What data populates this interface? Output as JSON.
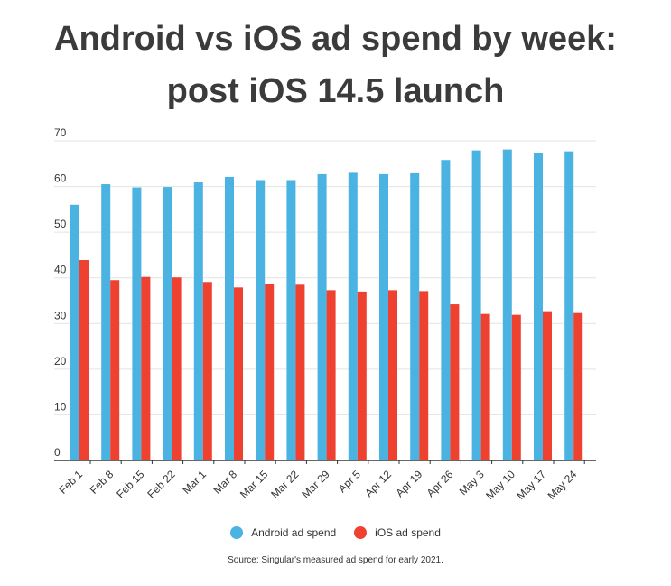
{
  "title_lines": [
    "Android vs iOS ad spend by week:",
    "post iOS 14.5 launch"
  ],
  "source": "Source: Singular's measured ad spend for early 2021.",
  "colors": {
    "android": "#4ab3e2",
    "ios": "#ef4130",
    "grid": "#e3e3e3",
    "axis": "#333333"
  },
  "chart_data": {
    "type": "bar",
    "title": "Android vs iOS ad spend by week: post iOS 14.5 launch",
    "categories": [
      "Feb 1",
      "Feb 8",
      "Feb 15",
      "Feb 22",
      "Mar 1",
      "Mar 8",
      "Mar 15",
      "Mar 22",
      "Mar 29",
      "Apr 5",
      "Apr 12",
      "Apr 19",
      "Apr 26",
      "May 3",
      "May 10",
      "May 17",
      "May 24"
    ],
    "series": [
      {
        "name": "Android ad spend",
        "values": [
          56,
          60.5,
          59.8,
          59.9,
          60.9,
          62.1,
          61.4,
          61.4,
          62.7,
          63.0,
          62.7,
          62.9,
          65.8,
          67.9,
          68.1,
          67.4,
          67.7
        ]
      },
      {
        "name": "iOS ad spend",
        "values": [
          43.9,
          39.5,
          40.2,
          40.1,
          39.1,
          37.9,
          38.6,
          38.5,
          37.3,
          37.0,
          37.3,
          37.1,
          34.2,
          32.1,
          31.9,
          32.7,
          32.3
        ]
      }
    ],
    "ylim": [
      0,
      70
    ],
    "yticks": [
      0,
      10,
      20,
      30,
      40,
      50,
      60,
      70
    ],
    "grid": true,
    "legend": "bottom-center"
  }
}
